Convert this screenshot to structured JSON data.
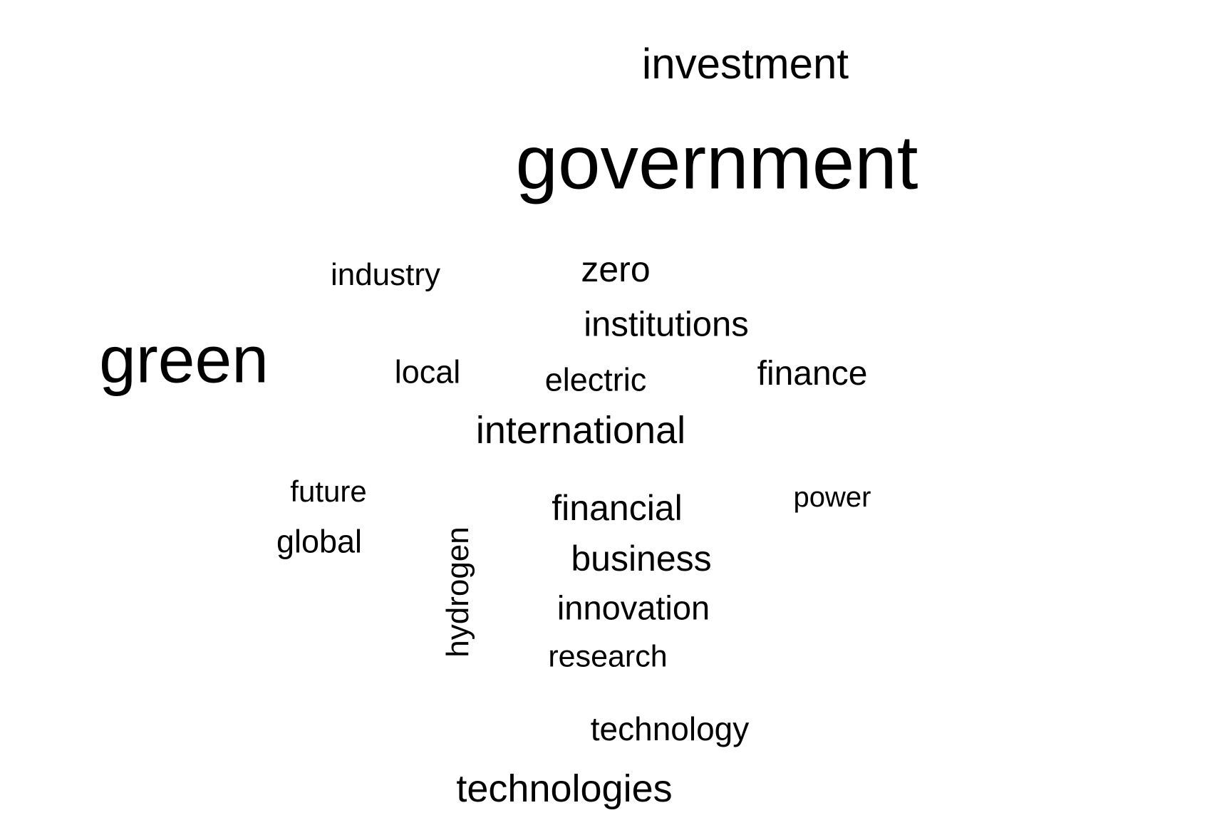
{
  "word_cloud": {
    "text_color": "#000000",
    "background_color": "#ffffff",
    "words": [
      {
        "text": "government"
      },
      {
        "text": "green"
      },
      {
        "text": "investment"
      },
      {
        "text": "international"
      },
      {
        "text": "technologies"
      },
      {
        "text": "institutions"
      },
      {
        "text": "business"
      },
      {
        "text": "financial"
      },
      {
        "text": "zero"
      },
      {
        "text": "finance"
      },
      {
        "text": "innovation"
      },
      {
        "text": "technology"
      },
      {
        "text": "electric"
      },
      {
        "text": "local"
      },
      {
        "text": "global"
      },
      {
        "text": "hydrogen"
      },
      {
        "text": "industry"
      },
      {
        "text": "research"
      },
      {
        "text": "future"
      },
      {
        "text": "power"
      }
    ]
  }
}
